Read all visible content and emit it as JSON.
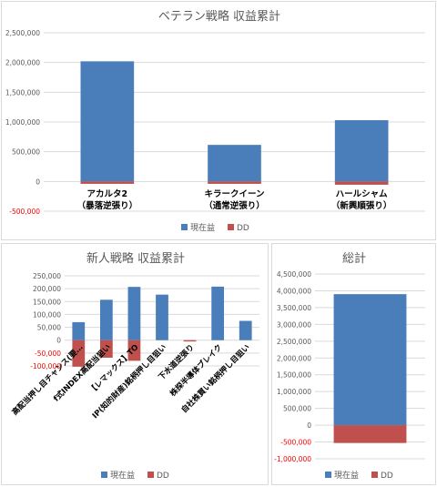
{
  "colors": {
    "profit": "#4a7ebb",
    "dd": "#c0504d",
    "grid": "#d9d9d9",
    "text": "#595959",
    "negative_tick": "#ff0000"
  },
  "chart_data": [
    {
      "type": "bar",
      "title": "ベテラン戦略 収益累計",
      "categories": [
        [
          "アカルタ2",
          "（暴落逆張り）"
        ],
        [
          "キラークイーン",
          "（通常逆張り）"
        ],
        [
          "ハールシャム",
          "（新興順張り）"
        ]
      ],
      "series": [
        {
          "name": "現在益",
          "values": [
            2020000,
            615000,
            1030000
          ]
        },
        {
          "name": "DD",
          "values": [
            -40000,
            -40000,
            -55000
          ]
        }
      ],
      "ylim": [
        -500000,
        2500000
      ],
      "yticks": [
        -500000,
        0,
        500000,
        1000000,
        1500000,
        2000000,
        2500000
      ],
      "ytick_labels": [
        "-500,000",
        "0",
        "500,000",
        "1,000,000",
        "1,500,000",
        "2,000,000",
        "2,500,000"
      ],
      "grid": true,
      "legend": "bottom"
    },
    {
      "type": "bar",
      "title": "新人戦略 収益累計",
      "categories": [
        [
          "高配当押し目チャンス(要…"
        ],
        [
          "f式INDEX高配当狙い"
        ],
        [
          "【レマックス】TO"
        ],
        [
          "IP(知的財産)銘柄押し目狙い"
        ],
        [
          "下水道逆張り"
        ],
        [
          "株探半導体ブレイク"
        ],
        [
          "自社株買い銘柄押し目狙い"
        ]
      ],
      "series": [
        {
          "name": "現在益",
          "values": [
            70000,
            157000,
            207000,
            177000,
            0,
            208000,
            75000
          ]
        },
        {
          "name": "DD",
          "values": [
            -103000,
            -68000,
            -80000,
            0,
            -5000,
            0,
            0
          ]
        }
      ],
      "ylim": [
        -100000,
        250000
      ],
      "yticks": [
        -100000,
        -50000,
        0,
        50000,
        100000,
        150000,
        200000,
        250000
      ],
      "ytick_labels": [
        "-100,000",
        "-50,000",
        "0",
        "50,000",
        "100,000",
        "150,000",
        "200,000",
        "250,000"
      ],
      "grid": true,
      "legend": "bottom"
    },
    {
      "type": "bar",
      "title": "総計",
      "categories": [
        [
          ""
        ]
      ],
      "series": [
        {
          "name": "現在益",
          "values": [
            3900000
          ]
        },
        {
          "name": "DD",
          "values": [
            -530000
          ]
        }
      ],
      "ylim": [
        -1000000,
        4500000
      ],
      "yticks": [
        -1000000,
        -500000,
        0,
        500000,
        1000000,
        1500000,
        2000000,
        2500000,
        3000000,
        3500000,
        4000000,
        4500000
      ],
      "ytick_labels": [
        "-1,000,000",
        "-500,000",
        "0",
        "500,000",
        "1,000,000",
        "1,500,000",
        "2,000,000",
        "2,500,000",
        "3,000,000",
        "3,500,000",
        "4,000,000",
        "4,500,000"
      ],
      "grid": true,
      "legend": "bottom"
    }
  ]
}
